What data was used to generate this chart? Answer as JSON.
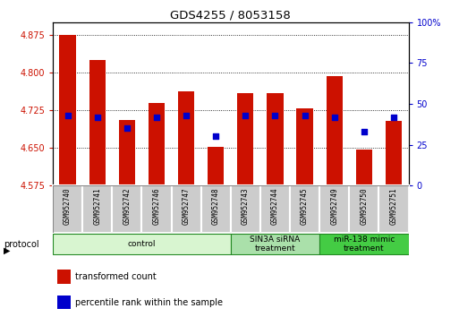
{
  "title": "GDS4255 / 8053158",
  "samples": [
    "GSM952740",
    "GSM952741",
    "GSM952742",
    "GSM952746",
    "GSM952747",
    "GSM952748",
    "GSM952743",
    "GSM952744",
    "GSM952745",
    "GSM952749",
    "GSM952750",
    "GSM952751"
  ],
  "transformed_counts": [
    4.875,
    4.825,
    4.705,
    4.74,
    4.762,
    4.652,
    4.758,
    4.758,
    4.728,
    4.793,
    4.647,
    4.703
  ],
  "percentile_ranks": [
    43,
    42,
    35,
    42,
    43,
    30,
    43,
    43,
    43,
    42,
    33,
    42
  ],
  "ylim_left": [
    4.575,
    4.9
  ],
  "ylim_right": [
    0,
    100
  ],
  "yticks_left": [
    4.575,
    4.65,
    4.725,
    4.8,
    4.875
  ],
  "yticks_right": [
    0,
    25,
    50,
    75,
    100
  ],
  "ytick_labels_right": [
    "0",
    "25",
    "50",
    "75",
    "100%"
  ],
  "bar_color": "#CC1100",
  "dot_color": "#0000CC",
  "bar_bottom": 4.575,
  "protocol_groups": [
    {
      "label": "control",
      "start": 0,
      "end": 5,
      "color": "#d8f5d0",
      "edgecolor": "#228822"
    },
    {
      "label": "SIN3A siRNA\ntreatment",
      "start": 6,
      "end": 8,
      "color": "#aae0aa",
      "edgecolor": "#228822"
    },
    {
      "label": "miR-138 mimic\ntreatment",
      "start": 9,
      "end": 11,
      "color": "#44cc44",
      "edgecolor": "#228822"
    }
  ],
  "legend_items": [
    {
      "label": "transformed count",
      "color": "#CC1100"
    },
    {
      "label": "percentile rank within the sample",
      "color": "#0000CC"
    }
  ],
  "tick_color_left": "#CC1100",
  "tick_color_right": "#0000CC",
  "grid_linestyle": "dotted",
  "label_bg": "#cccccc",
  "bar_width": 0.55
}
